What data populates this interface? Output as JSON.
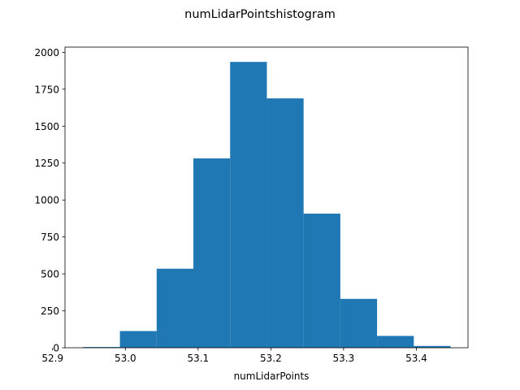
{
  "chart_data": {
    "type": "bar",
    "title": "numLidarPointshistogram",
    "xlabel": "numLidarPoints",
    "ylabel": "",
    "xlim": [
      52.917,
      53.471
    ],
    "ylim": [
      0,
      2035
    ],
    "xticks": [
      52.9,
      53.0,
      53.1,
      53.2,
      53.3,
      53.4
    ],
    "xtick_labels": [
      "52.9",
      "53.0",
      "53.1",
      "53.2",
      "53.3",
      "53.4"
    ],
    "yticks": [
      0,
      250,
      500,
      750,
      1000,
      1250,
      1500,
      1750,
      2000
    ],
    "ytick_labels": [
      "0",
      "250",
      "500",
      "750",
      "1000",
      "1250",
      "1500",
      "1750",
      "2000"
    ],
    "bin_edges": [
      52.942,
      52.9925,
      53.043,
      53.0935,
      53.144,
      53.1945,
      53.245,
      53.2955,
      53.346,
      53.3965,
      53.447
    ],
    "values": [
      5,
      113,
      535,
      1282,
      1935,
      1688,
      908,
      331,
      80,
      12
    ],
    "bar_color": "#1f77b4",
    "grid": false
  }
}
